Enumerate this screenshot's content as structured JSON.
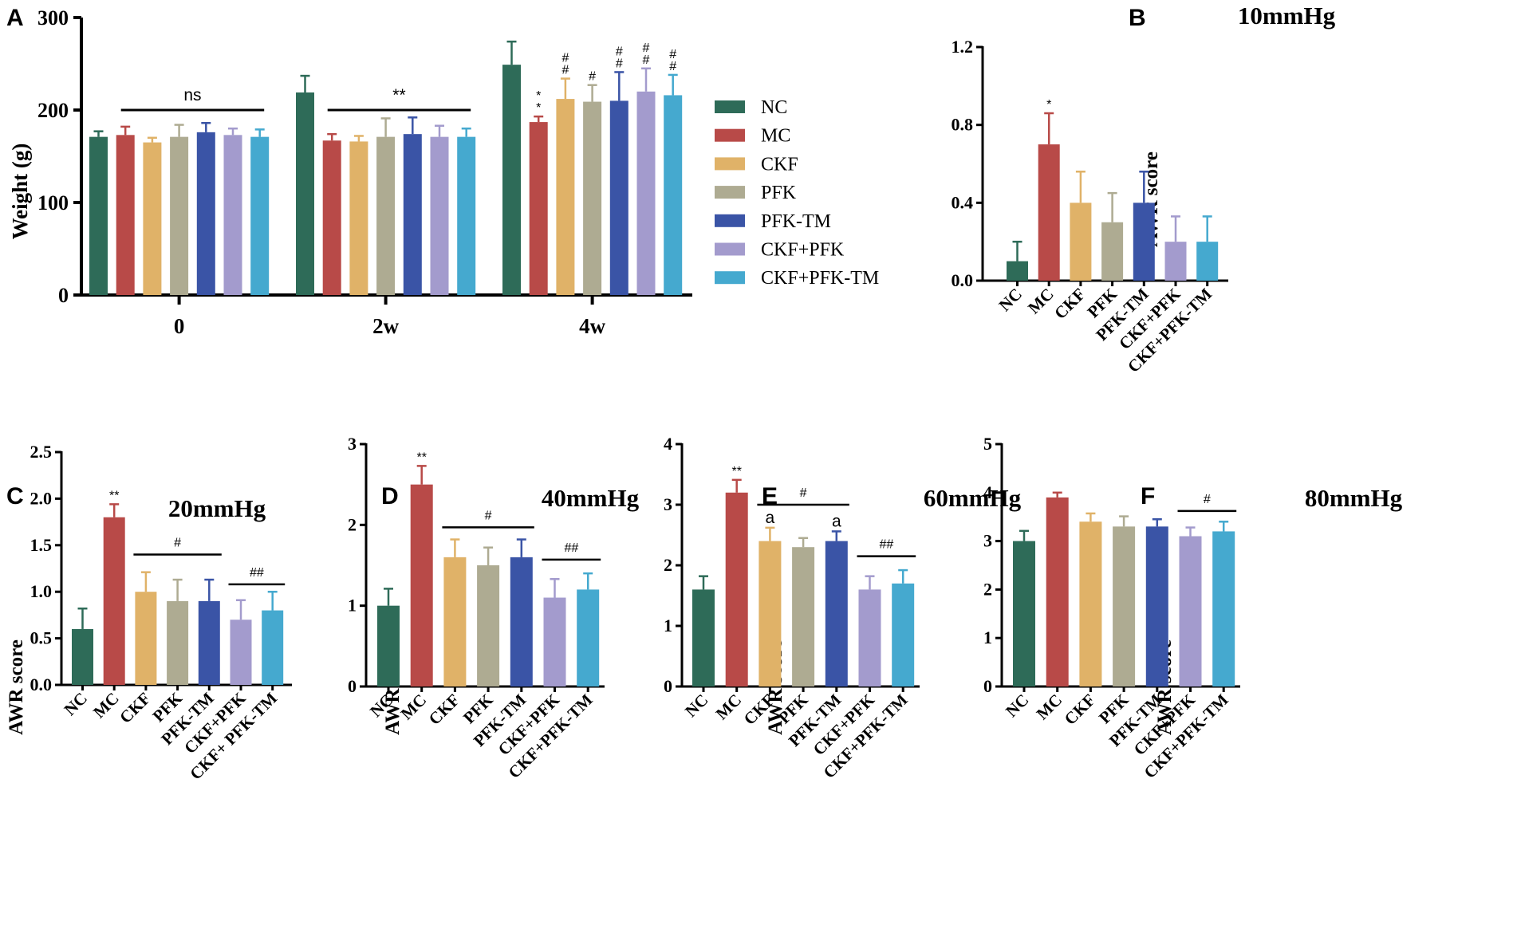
{
  "figure": {
    "colors": {
      "NC": "#2e6b58",
      "MC": "#b84a48",
      "CKF": "#e0b268",
      "PFK": "#aeab92",
      "PFK-TM": "#3a54a6",
      "CKF+PFK": "#a39bcd",
      "CKF+PFK-TM": "#45a9cf"
    },
    "legend": [
      "NC",
      "MC",
      "CKF",
      "PFK",
      "PFK-TM",
      "CKF+PFK",
      "CKF+PFK-TM"
    ]
  },
  "chart_data": [
    {
      "id": "A",
      "type": "bar",
      "panel_label": "A",
      "title": "",
      "xlabel": "",
      "ylabel": "Weight (g)",
      "ylim": [
        0,
        300
      ],
      "yticks": [
        "0",
        "100",
        "200",
        "300"
      ],
      "groups": [
        "0",
        "2w",
        "4w"
      ],
      "series": [
        {
          "name": "NC",
          "values": [
            171,
            219,
            249
          ],
          "errors": [
            6,
            18,
            25
          ]
        },
        {
          "name": "MC",
          "values": [
            173,
            167,
            187
          ],
          "errors": [
            9,
            7,
            6
          ]
        },
        {
          "name": "CKF",
          "values": [
            165,
            166,
            212
          ],
          "errors": [
            5,
            6,
            22
          ]
        },
        {
          "name": "PFK",
          "values": [
            171,
            171,
            209
          ],
          "errors": [
            13,
            20,
            18
          ]
        },
        {
          "name": "PFK-TM",
          "values": [
            176,
            174,
            210
          ],
          "errors": [
            10,
            18,
            31
          ]
        },
        {
          "name": "CKF+PFK",
          "values": [
            173,
            171,
            220
          ],
          "errors": [
            7,
            12,
            25
          ]
        },
        {
          "name": "CKF+PFK-TM",
          "values": [
            171,
            171,
            216
          ],
          "errors": [
            8,
            9,
            22
          ]
        }
      ],
      "annotations": [
        {
          "text": "ns",
          "group": 0,
          "from": 1,
          "to": 6,
          "y": 200,
          "line": true
        },
        {
          "text": "**",
          "group": 1,
          "from": 1,
          "to": 6,
          "y": 200,
          "line": true
        },
        {
          "text": "**",
          "group": 2,
          "bar": 1,
          "stacked": true
        },
        {
          "text": "##",
          "group": 2,
          "bar": 2,
          "stacked": true
        },
        {
          "text": "#",
          "group": 2,
          "bar": 3,
          "stacked": false
        },
        {
          "text": "##",
          "group": 2,
          "bar": 4,
          "stacked": true
        },
        {
          "text": "##",
          "group": 2,
          "bar": 5,
          "stacked": true
        },
        {
          "text": "##",
          "group": 2,
          "bar": 6,
          "stacked": true
        }
      ]
    },
    {
      "id": "B",
      "type": "bar",
      "panel_label": "B",
      "title": "10mmHg",
      "ylabel": "AWR score",
      "ylim": [
        0,
        1.2
      ],
      "yticks": [
        "0.0",
        "0.4",
        "0.8",
        "1.2"
      ],
      "categories": [
        "NC",
        "MC",
        "CKF",
        "PFK",
        "PFK-TM",
        "CKF+PFK",
        "CKF+PFK-TM"
      ],
      "values": [
        0.1,
        0.7,
        0.4,
        0.3,
        0.4,
        0.2,
        0.2
      ],
      "errors": [
        0.1,
        0.16,
        0.16,
        0.15,
        0.16,
        0.13,
        0.13
      ],
      "annotations": [
        {
          "text": "*",
          "bar": 1
        }
      ]
    },
    {
      "id": "C",
      "type": "bar",
      "panel_label": "C",
      "title": "20mmHg",
      "ylabel": "AWR score",
      "ylim": [
        0,
        2.5
      ],
      "yticks": [
        "0.0",
        "0.5",
        "1.0",
        "1.5",
        "2.0",
        "2.5"
      ],
      "categories": [
        "NC",
        "MC",
        "CKF",
        "PFK",
        "PFK-TM",
        "CKF+PFK",
        "CKF+ PFK-TM"
      ],
      "values": [
        0.6,
        1.8,
        1.0,
        0.9,
        0.9,
        0.7,
        0.8
      ],
      "errors": [
        0.22,
        0.14,
        0.21,
        0.23,
        0.23,
        0.21,
        0.2
      ],
      "annotations": [
        {
          "text": "**",
          "bar": 1
        },
        {
          "text": "#",
          "from": 2,
          "to": 4,
          "y": 1.4,
          "line": true
        },
        {
          "text": "##",
          "from": 5,
          "to": 6,
          "y": 1.08,
          "line": true
        }
      ]
    },
    {
      "id": "D",
      "type": "bar",
      "panel_label": "D",
      "title": "40mmHg",
      "ylabel": "AWR score",
      "ylim": [
        0,
        3
      ],
      "yticks": [
        "0",
        "1",
        "2",
        "3"
      ],
      "categories": [
        "NC",
        "MC",
        "CKF",
        "PFK",
        "PFK-TM",
        "CKF+PFK",
        "CKF+PFK-TM"
      ],
      "values": [
        1.0,
        2.5,
        1.6,
        1.5,
        1.6,
        1.1,
        1.2
      ],
      "errors": [
        0.21,
        0.23,
        0.22,
        0.22,
        0.22,
        0.23,
        0.2
      ],
      "annotations": [
        {
          "text": "**",
          "bar": 1
        },
        {
          "text": "#",
          "from": 2,
          "to": 4,
          "y": 1.97,
          "line": true
        },
        {
          "text": "##",
          "from": 5,
          "to": 6,
          "y": 1.57,
          "line": true
        }
      ]
    },
    {
      "id": "E",
      "type": "bar",
      "panel_label": "E",
      "title": "60mmHg",
      "ylabel": "AWR score",
      "ylim": [
        0,
        4
      ],
      "yticks": [
        "0",
        "1",
        "2",
        "3",
        "4"
      ],
      "categories": [
        "NC",
        "MC",
        "CKF",
        "PFK",
        "PFK-TM",
        "CKF+PFK",
        "CKF+PFK-TM"
      ],
      "values": [
        1.6,
        3.2,
        2.4,
        2.3,
        2.4,
        1.6,
        1.7
      ],
      "errors": [
        0.22,
        0.21,
        0.22,
        0.15,
        0.16,
        0.22,
        0.22
      ],
      "annotations": [
        {
          "text": "**",
          "bar": 1
        },
        {
          "text": "a",
          "bar": 2
        },
        {
          "text": "a",
          "bar": 4
        },
        {
          "text": "#",
          "from": 2,
          "to": 4,
          "y": 3.0,
          "line": true
        },
        {
          "text": "##",
          "from": 5,
          "to": 6,
          "y": 2.15,
          "line": true
        }
      ]
    },
    {
      "id": "F",
      "type": "bar",
      "panel_label": "F",
      "title": "80mmHg",
      "ylabel": "AWR score",
      "ylim": [
        0,
        5
      ],
      "yticks": [
        "0",
        "1",
        "2",
        "3",
        "4",
        "5"
      ],
      "categories": [
        "NC",
        "MC",
        "CKF",
        "PFK",
        "PFK-TM",
        "CKF+PFK",
        "CKF+PFK-TM"
      ],
      "values": [
        3.0,
        3.9,
        3.4,
        3.3,
        3.3,
        3.1,
        3.2
      ],
      "errors": [
        0.21,
        0.1,
        0.17,
        0.21,
        0.15,
        0.18,
        0.2
      ],
      "annotations": [
        {
          "text": "#",
          "from": 5,
          "to": 6,
          "y": 3.62,
          "line": true
        }
      ]
    }
  ]
}
